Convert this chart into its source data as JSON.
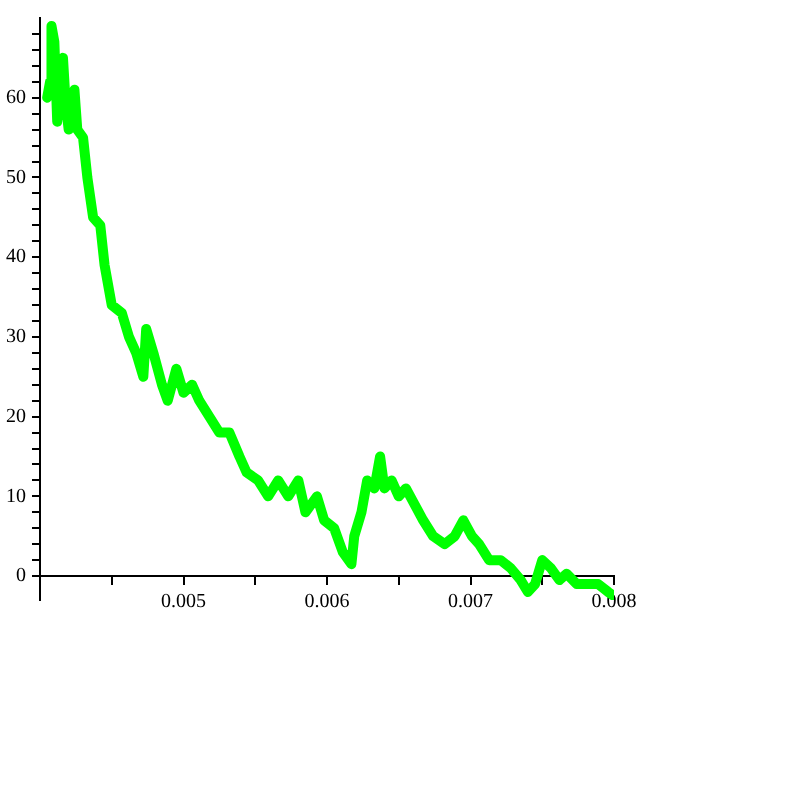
{
  "chart_data": {
    "type": "line",
    "marker": "none",
    "line_style": "solid",
    "grid": false,
    "legend": false,
    "x": [
      0.00405,
      0.00407,
      0.00408,
      0.0041,
      0.00412,
      0.00414,
      0.00416,
      0.00418,
      0.0042,
      0.00424,
      0.00426,
      0.0043,
      0.00433,
      0.00437,
      0.00442,
      0.00445,
      0.0045,
      0.00457,
      0.00462,
      0.00467,
      0.00472,
      0.00474,
      0.00479,
      0.00485,
      0.00489,
      0.00495,
      0.005,
      0.00506,
      0.00511,
      0.00518,
      0.00525,
      0.00532,
      0.00539,
      0.00544,
      0.00552,
      0.00559,
      0.00566,
      0.00573,
      0.0058,
      0.00585,
      0.00593,
      0.00598,
      0.00605,
      0.00611,
      0.00617,
      0.00619,
      0.00624,
      0.00628,
      0.00633,
      0.00637,
      0.0064,
      0.00645,
      0.0065,
      0.00655,
      0.00661,
      0.00667,
      0.00674,
      0.00682,
      0.00689,
      0.00695,
      0.00701,
      0.00706,
      0.00713,
      0.00721,
      0.00728,
      0.00735,
      0.0074,
      0.00745,
      0.0075,
      0.00756,
      0.00762,
      0.00767,
      0.00774,
      0.00781,
      0.00789,
      0.00796,
      0.008
    ],
    "series": [
      {
        "color": "#00ff00",
        "values": [
          60,
          62,
          69,
          67,
          57,
          62,
          65,
          59,
          56,
          61,
          56,
          55,
          50,
          45,
          44,
          39,
          34,
          33,
          30,
          28,
          25,
          31,
          28,
          24,
          22,
          26,
          23,
          24,
          22,
          20,
          18,
          18,
          15,
          13,
          12,
          10,
          12,
          10,
          12,
          8,
          10,
          7,
          6,
          3,
          1.5,
          5,
          8,
          12,
          11,
          15,
          11,
          12,
          10,
          11,
          9,
          7,
          5,
          4,
          5,
          7,
          5,
          4,
          2,
          2,
          1,
          -0.5,
          -2,
          -1,
          2,
          1,
          -0.5,
          0.3,
          -1,
          -1,
          -1,
          -2,
          -2.5
        ]
      }
    ],
    "xlim": [
      0.004,
      0.008
    ],
    "ylim": [
      -3,
      70
    ],
    "xticks": [
      {
        "value": 0.0045,
        "label": null
      },
      0.005,
      {
        "value": 0.0055,
        "label": null
      },
      0.006,
      {
        "value": 0.0065,
        "label": null
      },
      0.007,
      {
        "value": 0.0075,
        "label": null
      },
      0.008
    ],
    "yticks": [
      0,
      {
        "value": 2,
        "label": null
      },
      {
        "value": 4,
        "label": null
      },
      {
        "value": 6,
        "label": null
      },
      {
        "value": 8,
        "label": null
      },
      10,
      {
        "value": 12,
        "label": null
      },
      {
        "value": 14,
        "label": null
      },
      {
        "value": 16,
        "label": null
      },
      {
        "value": 18,
        "label": null
      },
      20,
      {
        "value": 22,
        "label": null
      },
      {
        "value": 24,
        "label": null
      },
      {
        "value": 26,
        "label": null
      },
      {
        "value": 28,
        "label": null
      },
      30,
      {
        "value": 32,
        "label": null
      },
      {
        "value": 34,
        "label": null
      },
      {
        "value": 36,
        "label": null
      },
      {
        "value": 38,
        "label": null
      },
      40,
      {
        "value": 42,
        "label": null
      },
      {
        "value": 44,
        "label": null
      },
      {
        "value": 46,
        "label": null
      },
      {
        "value": 48,
        "label": null
      },
      50,
      {
        "value": 52,
        "label": null
      },
      {
        "value": 54,
        "label": null
      },
      {
        "value": 56,
        "label": null
      },
      {
        "value": 58,
        "label": null
      },
      60,
      {
        "value": 62,
        "label": null
      },
      {
        "value": 64,
        "label": null
      },
      {
        "value": 66,
        "label": null
      },
      {
        "value": 68,
        "label": null
      }
    ]
  }
}
